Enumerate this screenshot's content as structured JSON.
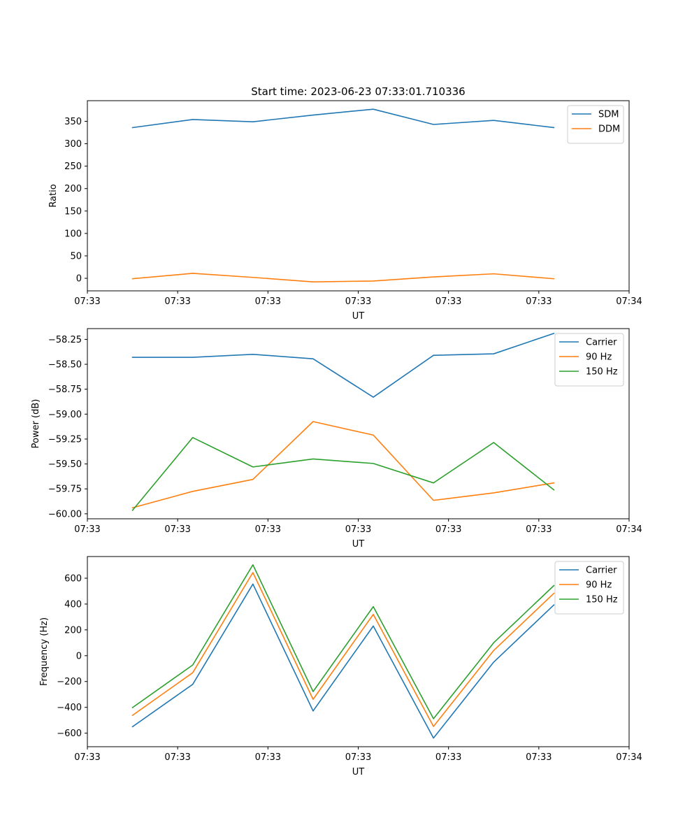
{
  "chart_data": [
    {
      "type": "line",
      "title": "Start time: 2023-06-23 07:33:01.710336",
      "xlabel": "UT",
      "ylabel": "Ratio",
      "x_tick_labels": [
        "07:33",
        "07:33",
        "07:33",
        "07:33",
        "07:33",
        "07:33",
        "07:34"
      ],
      "x_ticks": [
        -0.75,
        0.75,
        2.25,
        3.75,
        5.25,
        6.75,
        8.25
      ],
      "xlim": [
        -0.75,
        8.25
      ],
      "ylim": [
        -28,
        396
      ],
      "y_ticks": [
        0,
        50,
        100,
        150,
        200,
        250,
        300,
        350
      ],
      "y_tick_labels": [
        "0",
        "50",
        "100",
        "150",
        "200",
        "250",
        "300",
        "350"
      ],
      "x": [
        0,
        1,
        2,
        3,
        4,
        5,
        6,
        7
      ],
      "legend": "upper right",
      "series": [
        {
          "name": "SDM",
          "color": "#1f77b4",
          "values": [
            336,
            354,
            349,
            364,
            377,
            343,
            352,
            336
          ]
        },
        {
          "name": "DDM",
          "color": "#ff7f0e",
          "values": [
            -1,
            11,
            2,
            -8,
            -6,
            3,
            10,
            -1
          ]
        }
      ]
    },
    {
      "type": "line",
      "title": "",
      "xlabel": "UT",
      "ylabel": "Power (dB)",
      "x_tick_labels": [
        "07:33",
        "07:33",
        "07:33",
        "07:33",
        "07:33",
        "07:33",
        "07:34"
      ],
      "x_ticks": [
        -0.75,
        0.75,
        2.25,
        3.75,
        5.25,
        6.75,
        8.25
      ],
      "xlim": [
        -0.75,
        8.25
      ],
      "ylim": [
        -60.05,
        -58.142
      ],
      "y_ticks": [
        -60.0,
        -59.75,
        -59.5,
        -59.25,
        -59.0,
        -58.75,
        -58.5,
        -58.25
      ],
      "y_tick_labels": [
        "−60.00",
        "−59.75",
        "−59.50",
        "−59.25",
        "−59.00",
        "−58.75",
        "−58.50",
        "−58.25"
      ],
      "x": [
        0,
        1,
        2,
        3,
        4,
        5,
        6,
        7
      ],
      "legend": "upper right",
      "series": [
        {
          "name": "Carrier",
          "color": "#1f77b4",
          "values": [
            -58.43,
            -58.43,
            -58.4,
            -58.445,
            -58.83,
            -58.41,
            -58.395,
            -58.19
          ]
        },
        {
          "name": "90 Hz",
          "color": "#ff7f0e",
          "values": [
            -59.94,
            -59.775,
            -59.655,
            -59.075,
            -59.21,
            -59.865,
            -59.79,
            -59.69
          ]
        },
        {
          "name": "150 Hz",
          "color": "#2ca02c",
          "values": [
            -59.965,
            -59.235,
            -59.53,
            -59.45,
            -59.495,
            -59.69,
            -59.285,
            -59.76
          ]
        }
      ]
    },
    {
      "type": "line",
      "title": "",
      "xlabel": "UT",
      "ylabel": "Frequency (Hz)",
      "x_tick_labels": [
        "07:33",
        "07:33",
        "07:33",
        "07:33",
        "07:33",
        "07:33",
        "07:34"
      ],
      "x_ticks": [
        -0.75,
        0.75,
        2.25,
        3.75,
        5.25,
        6.75,
        8.25
      ],
      "xlim": [
        -0.75,
        8.25
      ],
      "ylim": [
        -705,
        768
      ],
      "y_ticks": [
        -600,
        -400,
        -200,
        0,
        200,
        400,
        600
      ],
      "y_tick_labels": [
        "−600",
        "−400",
        "−200",
        "0",
        "200",
        "400",
        "600"
      ],
      "x": [
        0,
        1,
        2,
        3,
        4,
        5,
        6,
        7
      ],
      "legend": "upper right",
      "series": [
        {
          "name": "Carrier",
          "color": "#1f77b4",
          "values": [
            -550,
            -222,
            555,
            -428,
            230,
            -638,
            -50,
            393
          ]
        },
        {
          "name": "90 Hz",
          "color": "#ff7f0e",
          "values": [
            -462,
            -132,
            644,
            -338,
            320,
            -548,
            40,
            483
          ]
        },
        {
          "name": "150 Hz",
          "color": "#2ca02c",
          "values": [
            -402,
            -72,
            704,
            -278,
            380,
            -488,
            100,
            543
          ]
        }
      ]
    }
  ]
}
